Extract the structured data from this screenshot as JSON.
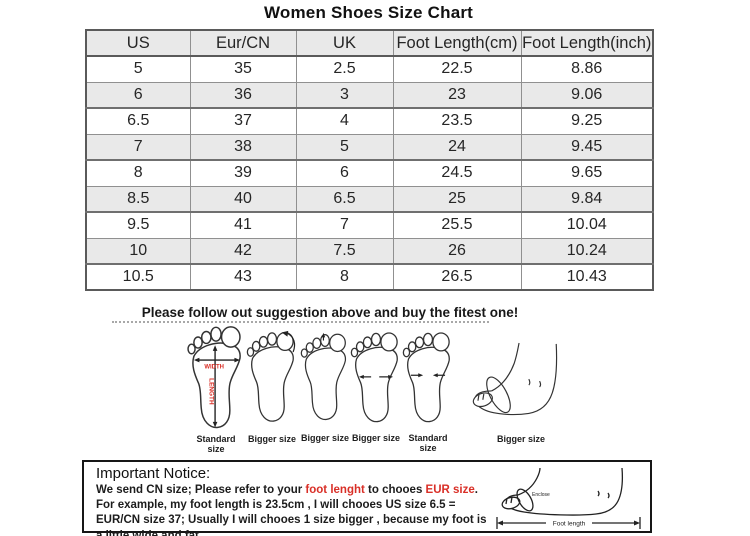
{
  "title": "Women Shoes Size Chart",
  "chart_data": {
    "type": "table",
    "title": "Women Shoes Size Chart",
    "columns": [
      "US",
      "Eur/CN",
      "UK",
      "Foot Length(cm)",
      "Foot Length(inch)"
    ],
    "rows": [
      [
        "5",
        "35",
        "2.5",
        "22.5",
        "8.86"
      ],
      [
        "6",
        "36",
        "3",
        "23",
        "9.06"
      ],
      [
        "6.5",
        "37",
        "4",
        "23.5",
        "9.25"
      ],
      [
        "7",
        "38",
        "5",
        "24",
        "9.45"
      ],
      [
        "8",
        "39",
        "6",
        "24.5",
        "9.65"
      ],
      [
        "8.5",
        "40",
        "6.5",
        "25",
        "9.84"
      ],
      [
        "9.5",
        "41",
        "7",
        "25.5",
        "10.04"
      ],
      [
        "10",
        "42",
        "7.5",
        "26",
        "10.24"
      ],
      [
        "10.5",
        "43",
        "8",
        "26.5",
        "10.43"
      ]
    ]
  },
  "suggestion_text": "Please follow out suggestion above and buy the fitest one!",
  "diagram": {
    "width_label": "WIDTH",
    "length_label": "LENGTH",
    "feet": [
      {
        "label": "Standard size"
      },
      {
        "label": "Bigger size"
      },
      {
        "label": "Bigger size"
      },
      {
        "label": "Bigger size"
      },
      {
        "label": "Standard size"
      },
      {
        "label": "Bigger size"
      }
    ]
  },
  "notice": {
    "title": "Important Notice:",
    "parts": [
      {
        "text": "We send CN size; Please refer to your ",
        "red": false
      },
      {
        "text": "foot lenght",
        "red": true
      },
      {
        "text": " to chooes ",
        "red": false
      },
      {
        "text": "EUR size",
        "red": true
      },
      {
        "text": ". For example, my foot length is 23.5cm , I will chooes US size 6.5 = EUR/CN size 37; Usually I will chooes 1 size bigger , because my foot is a little wide and fat.",
        "red": false
      }
    ],
    "foot_diagram": {
      "enclose_label": "Enclose",
      "length_label": "Foot length"
    }
  },
  "colors": {
    "highlight_red": "#d92f27",
    "row_alt_bg": "#e9e9e9",
    "table_border": "#909090"
  }
}
